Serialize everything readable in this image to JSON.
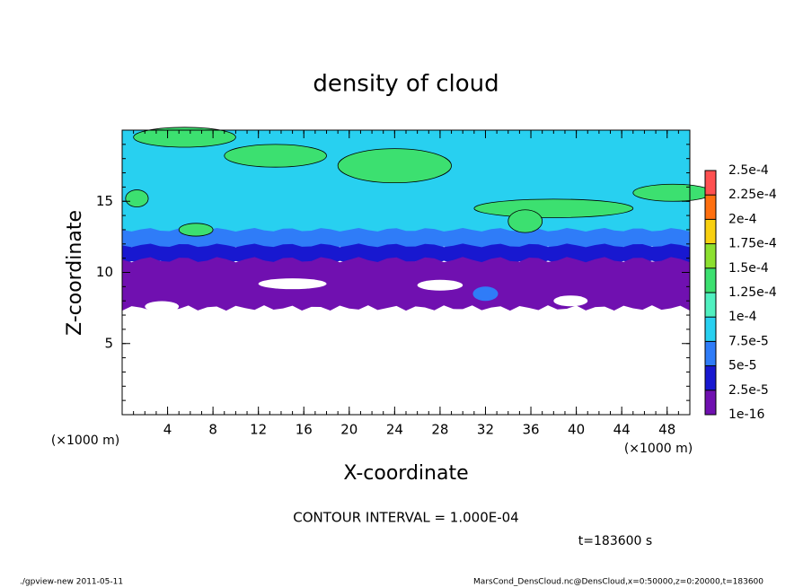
{
  "chart_data": {
    "type": "contour",
    "title": "density of cloud",
    "x_label": "X-coordinate",
    "y_label": "Z-coordinate",
    "x_unit_left": "(×1000 m)",
    "x_unit_right": "(×1000 m)",
    "xlim": [
      0,
      50
    ],
    "xticks": [
      4,
      8,
      12,
      16,
      20,
      24,
      28,
      32,
      36,
      40,
      44,
      48
    ],
    "ylim": [
      0,
      20
    ],
    "yticks": [
      5,
      10,
      15
    ],
    "colorbar": {
      "ticks": [
        {
          "value": 1e-16,
          "label": "1e-16"
        },
        {
          "value": 2.5e-05,
          "label": "2.5e-5"
        },
        {
          "value": 5e-05,
          "label": "5e-5"
        },
        {
          "value": 7.5e-05,
          "label": "7.5e-5"
        },
        {
          "value": 0.0001,
          "label": "1e-4"
        },
        {
          "value": 0.000125,
          "label": "1.25e-4"
        },
        {
          "value": 0.00015,
          "label": "1.5e-4"
        },
        {
          "value": 0.000175,
          "label": "1.75e-4"
        },
        {
          "value": 0.0002,
          "label": "2e-4"
        },
        {
          "value": 0.000225,
          "label": "2.25e-4"
        },
        {
          "value": 0.00025,
          "label": "2.5e-4"
        }
      ],
      "colors": [
        "#7010b0",
        "#1818d0",
        "#2f7cf8",
        "#28d0f0",
        "#50f0c0",
        "#3ce070",
        "#8ce030",
        "#f8d010",
        "#ff7010",
        "#ff5050"
      ]
    },
    "contour_interval": "CONTOUR INTERVAL = 1.000E-04",
    "time_label": "t=183600 s",
    "footer_left": "./gpview-new  2011-05-11",
    "footer_right": "MarsCond_DensCloud.nc@DensCloud,x=0:50000,z=0:20000,t=183600"
  }
}
